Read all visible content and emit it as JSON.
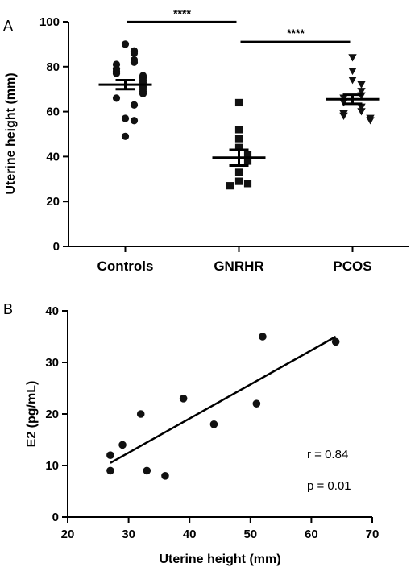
{
  "chart_data": [
    {
      "panel": "A",
      "type": "scatter",
      "categories": [
        "Controls",
        "GNRHR",
        "PCOS"
      ],
      "ylabel": "Uterine height (mm)",
      "ylim": [
        0,
        100
      ],
      "yticks": [
        0,
        20,
        40,
        60,
        80,
        100
      ],
      "series": [
        {
          "category": "Controls",
          "marker": "circle",
          "values": [
            90,
            87,
            86,
            83,
            82,
            81,
            79,
            78,
            77,
            76,
            75,
            74,
            73,
            72,
            71,
            70,
            69,
            68,
            66,
            63,
            57,
            56,
            49
          ],
          "mean": 72,
          "sem_range": [
            70,
            74
          ]
        },
        {
          "category": "GNRHR",
          "marker": "square",
          "values": [
            64,
            52,
            48,
            44,
            41,
            38,
            33,
            29,
            28,
            27
          ],
          "mean": 39.5,
          "sem_range": [
            36,
            43
          ]
        },
        {
          "category": "PCOS",
          "marker": "triangle-down",
          "values": [
            84,
            78,
            74,
            72,
            69,
            67,
            66,
            64,
            62,
            60,
            59,
            58,
            57,
            56
          ],
          "mean": 65.5,
          "sem_range": [
            63.5,
            67.5
          ]
        }
      ],
      "significance": [
        {
          "from": "Controls",
          "to": "GNRHR",
          "label": "****",
          "y": 102
        },
        {
          "from": "GNRHR",
          "to": "PCOS",
          "label": "****",
          "y": 91
        }
      ]
    },
    {
      "panel": "B",
      "type": "scatter",
      "xlabel": "Uterine height (mm)",
      "ylabel": "E2 (pg/mL)",
      "xlim": [
        20,
        70
      ],
      "ylim": [
        0,
        40
      ],
      "xticks": [
        20,
        30,
        40,
        50,
        60,
        70
      ],
      "yticks": [
        0,
        10,
        20,
        30,
        40
      ],
      "points": [
        {
          "x": 27,
          "y": 12
        },
        {
          "x": 27,
          "y": 9
        },
        {
          "x": 29,
          "y": 14
        },
        {
          "x": 32,
          "y": 20
        },
        {
          "x": 33,
          "y": 9
        },
        {
          "x": 36,
          "y": 8
        },
        {
          "x": 39,
          "y": 23
        },
        {
          "x": 44,
          "y": 18
        },
        {
          "x": 51,
          "y": 22
        },
        {
          "x": 52,
          "y": 35
        },
        {
          "x": 64,
          "y": 34
        }
      ],
      "fit_line": {
        "x": [
          27,
          64
        ],
        "y": [
          10.5,
          35
        ]
      },
      "annotations": [
        "r = 0.84",
        "p = 0.01"
      ]
    }
  ]
}
